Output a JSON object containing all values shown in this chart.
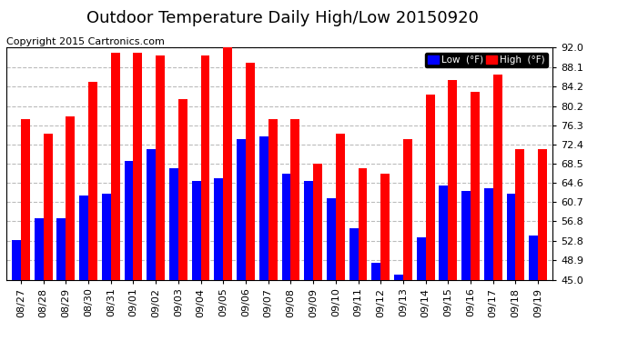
{
  "title": "Outdoor Temperature Daily High/Low 20150920",
  "copyright": "Copyright 2015 Cartronics.com",
  "dates": [
    "08/27",
    "08/28",
    "08/29",
    "08/30",
    "08/31",
    "09/01",
    "09/02",
    "09/03",
    "09/04",
    "09/05",
    "09/06",
    "09/07",
    "09/08",
    "09/09",
    "09/10",
    "09/11",
    "09/12",
    "09/13",
    "09/14",
    "09/15",
    "09/16",
    "09/17",
    "09/18",
    "09/19"
  ],
  "highs": [
    77.5,
    74.5,
    78.0,
    85.0,
    91.0,
    91.0,
    90.5,
    81.5,
    90.5,
    92.0,
    89.0,
    77.5,
    77.5,
    68.5,
    74.5,
    67.5,
    66.5,
    73.5,
    82.5,
    85.5,
    83.0,
    86.5,
    71.5,
    71.5
  ],
  "lows": [
    53.0,
    57.5,
    57.5,
    62.0,
    62.5,
    69.0,
    71.5,
    67.5,
    65.0,
    65.5,
    73.5,
    74.0,
    66.5,
    65.0,
    61.5,
    55.5,
    48.5,
    46.0,
    53.5,
    64.0,
    63.0,
    63.5,
    62.5,
    54.0
  ],
  "high_color": "#ff0000",
  "low_color": "#0000ff",
  "bg_color": "#ffffff",
  "grid_color": "#bbbbbb",
  "yticks": [
    45.0,
    48.9,
    52.8,
    56.8,
    60.7,
    64.6,
    68.5,
    72.4,
    76.3,
    80.2,
    84.2,
    88.1,
    92.0
  ],
  "ymin": 45.0,
  "ymax": 92.0,
  "legend_low_label": "Low  (°F)",
  "legend_high_label": "High  (°F)",
  "title_fontsize": 13,
  "copyright_fontsize": 8,
  "tick_fontsize": 8,
  "bar_width": 0.4
}
